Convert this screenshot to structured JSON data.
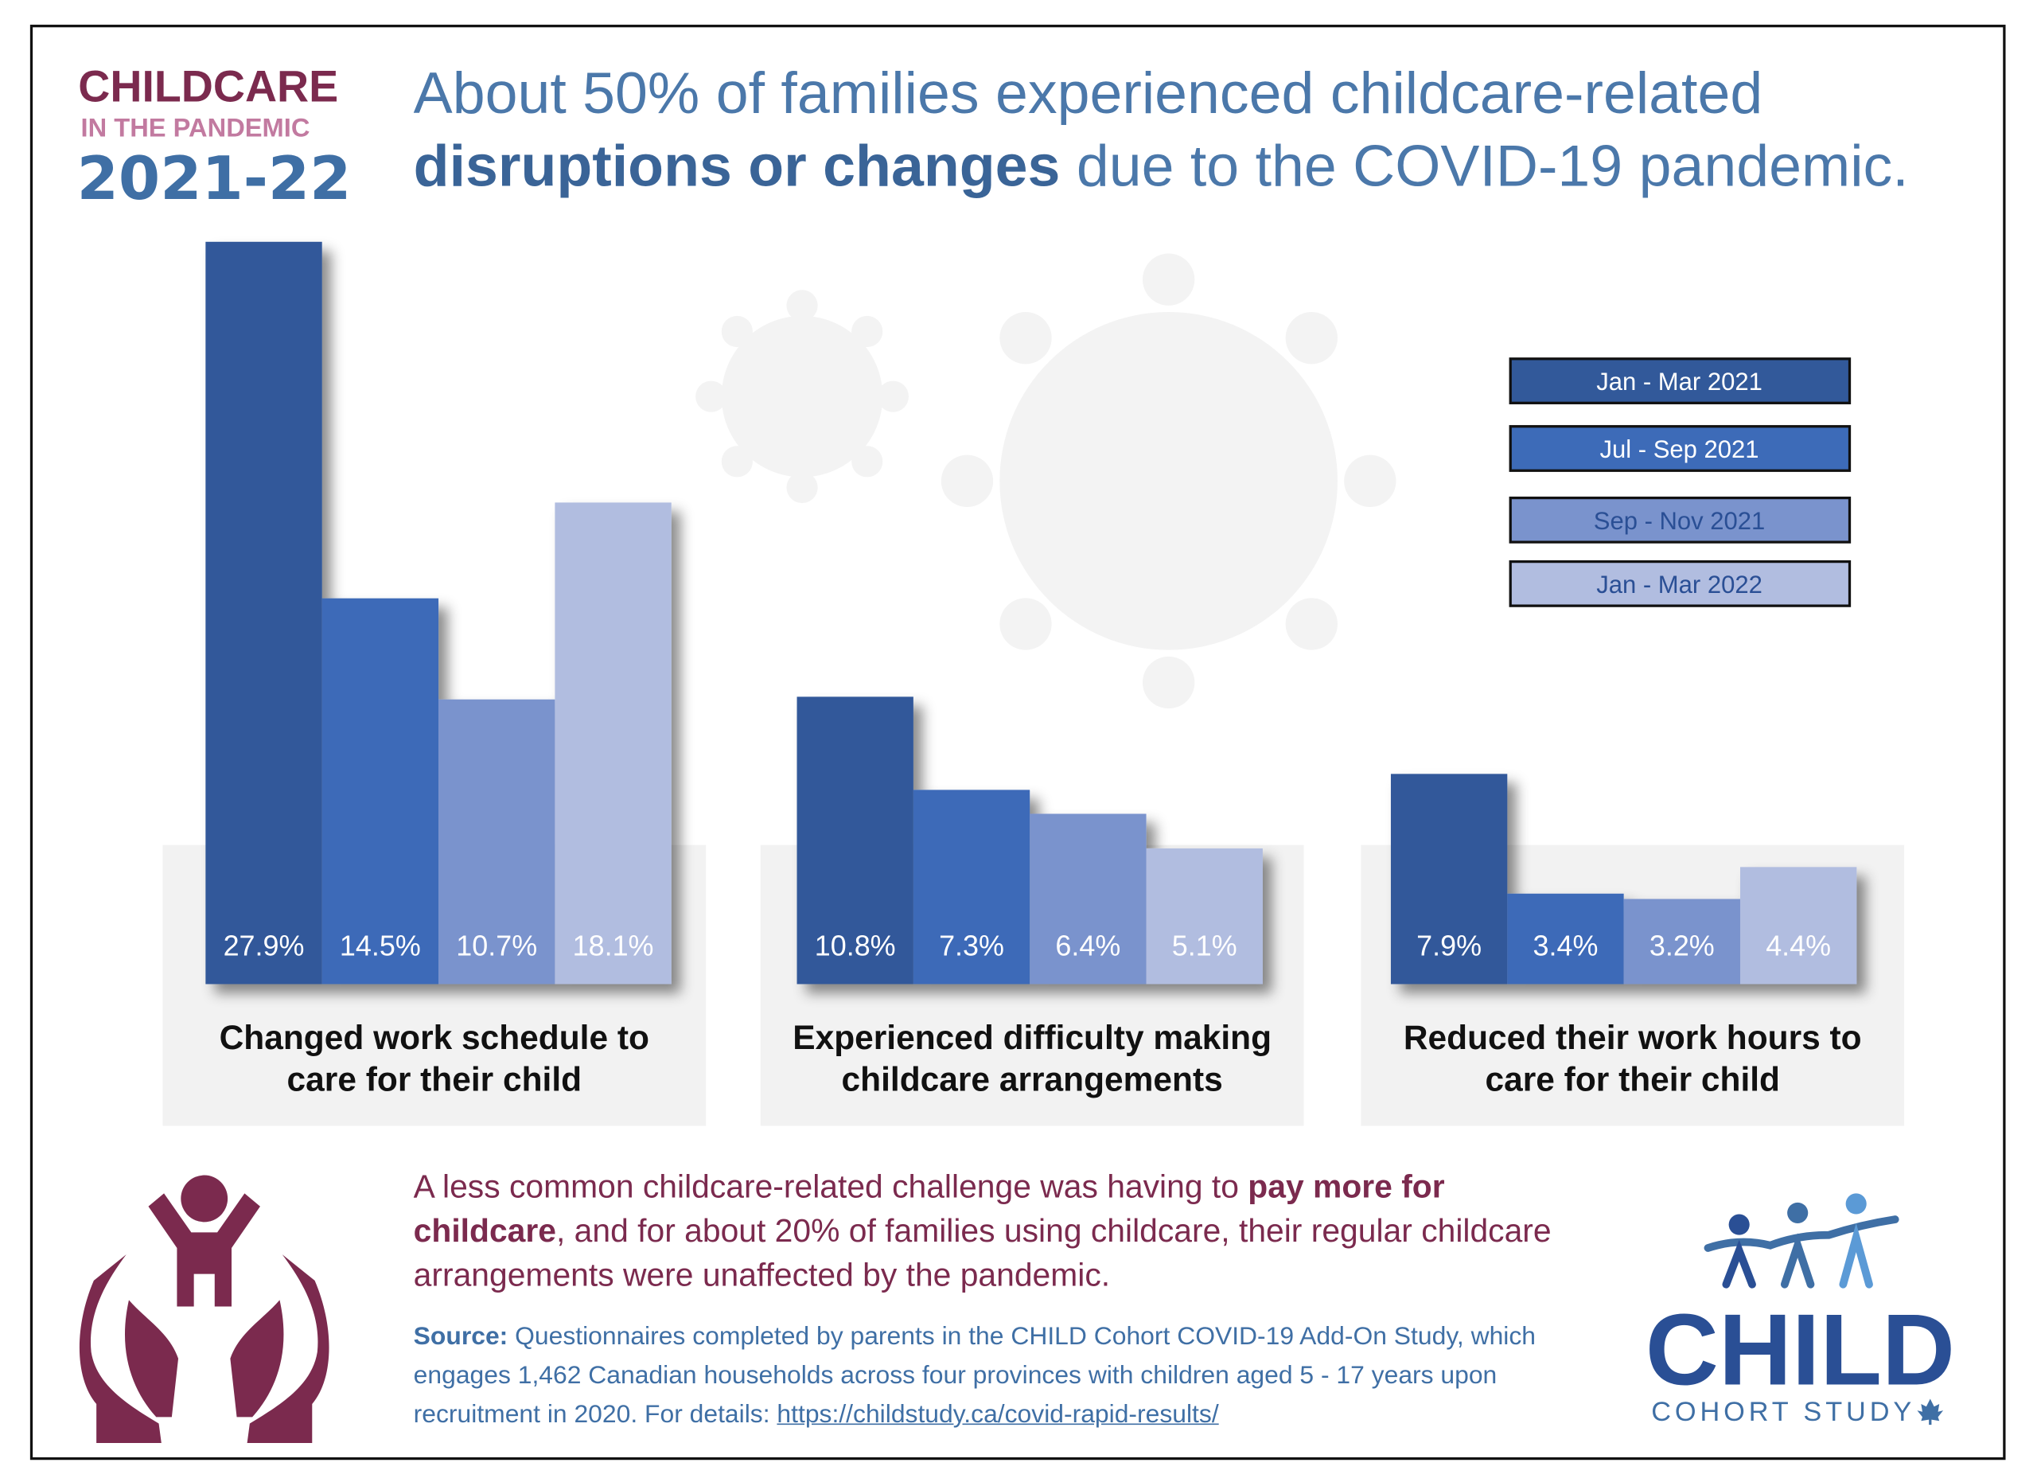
{
  "logo": {
    "line1": "CHILDCARE",
    "line2": "IN THE PANDEMIC",
    "line3": "2021-22"
  },
  "chart_data": {
    "type": "bar",
    "title": [
      "About 50% of families experienced childcare-related ",
      "disruptions or changes",
      " due to the COVID-19 pandemic."
    ],
    "categories": [
      "Changed work schedule to care for their child",
      "Experienced difficulty making childcare arrangements",
      "Reduced their work hours to care for their child"
    ],
    "series": [
      {
        "name": "Jan - Mar 2021",
        "color": "#32599a",
        "values": [
          27.9,
          10.8,
          7.9
        ],
        "value_labels": [
          "27.9%",
          "10.8%",
          "7.9%"
        ]
      },
      {
        "name": "Jul - Sep 2021",
        "color": "#3d6bb8",
        "values": [
          14.5,
          7.3,
          3.4
        ],
        "value_labels": [
          "14.5%",
          "7.3%",
          "3.4%"
        ]
      },
      {
        "name": "Sep - Nov 2021",
        "color": "#7a93cd",
        "values": [
          10.7,
          6.4,
          3.2
        ],
        "value_labels": [
          "10.7%",
          "6.4%",
          "3.2%"
        ]
      },
      {
        "name": "Jan - Mar 2022",
        "color": "#b1bde0",
        "values": [
          18.1,
          5.1,
          4.4
        ],
        "value_labels": [
          "18.1%",
          "5.1%",
          "4.4%"
        ]
      }
    ]
  },
  "footer": {
    "note": [
      "A less common childcare-related challenge was having to ",
      "pay more for childcare",
      ", and for about 20% of families using childcare, their regular childcare arrangements were unaffected by the pandemic."
    ],
    "source": [
      "Source:",
      " Questionnaires completed by parents in the CHILD Cohort COVID-19 Add-On Study, which engages 1,462 Canadian households across four provinces with children aged 5 - 17 years upon recruitment in 2020. For details: ",
      "https://childstudy.ca/covid-rapid-results/"
    ]
  },
  "brand": {
    "name": "CHILD",
    "subtitle": "COHORT STUDY"
  }
}
